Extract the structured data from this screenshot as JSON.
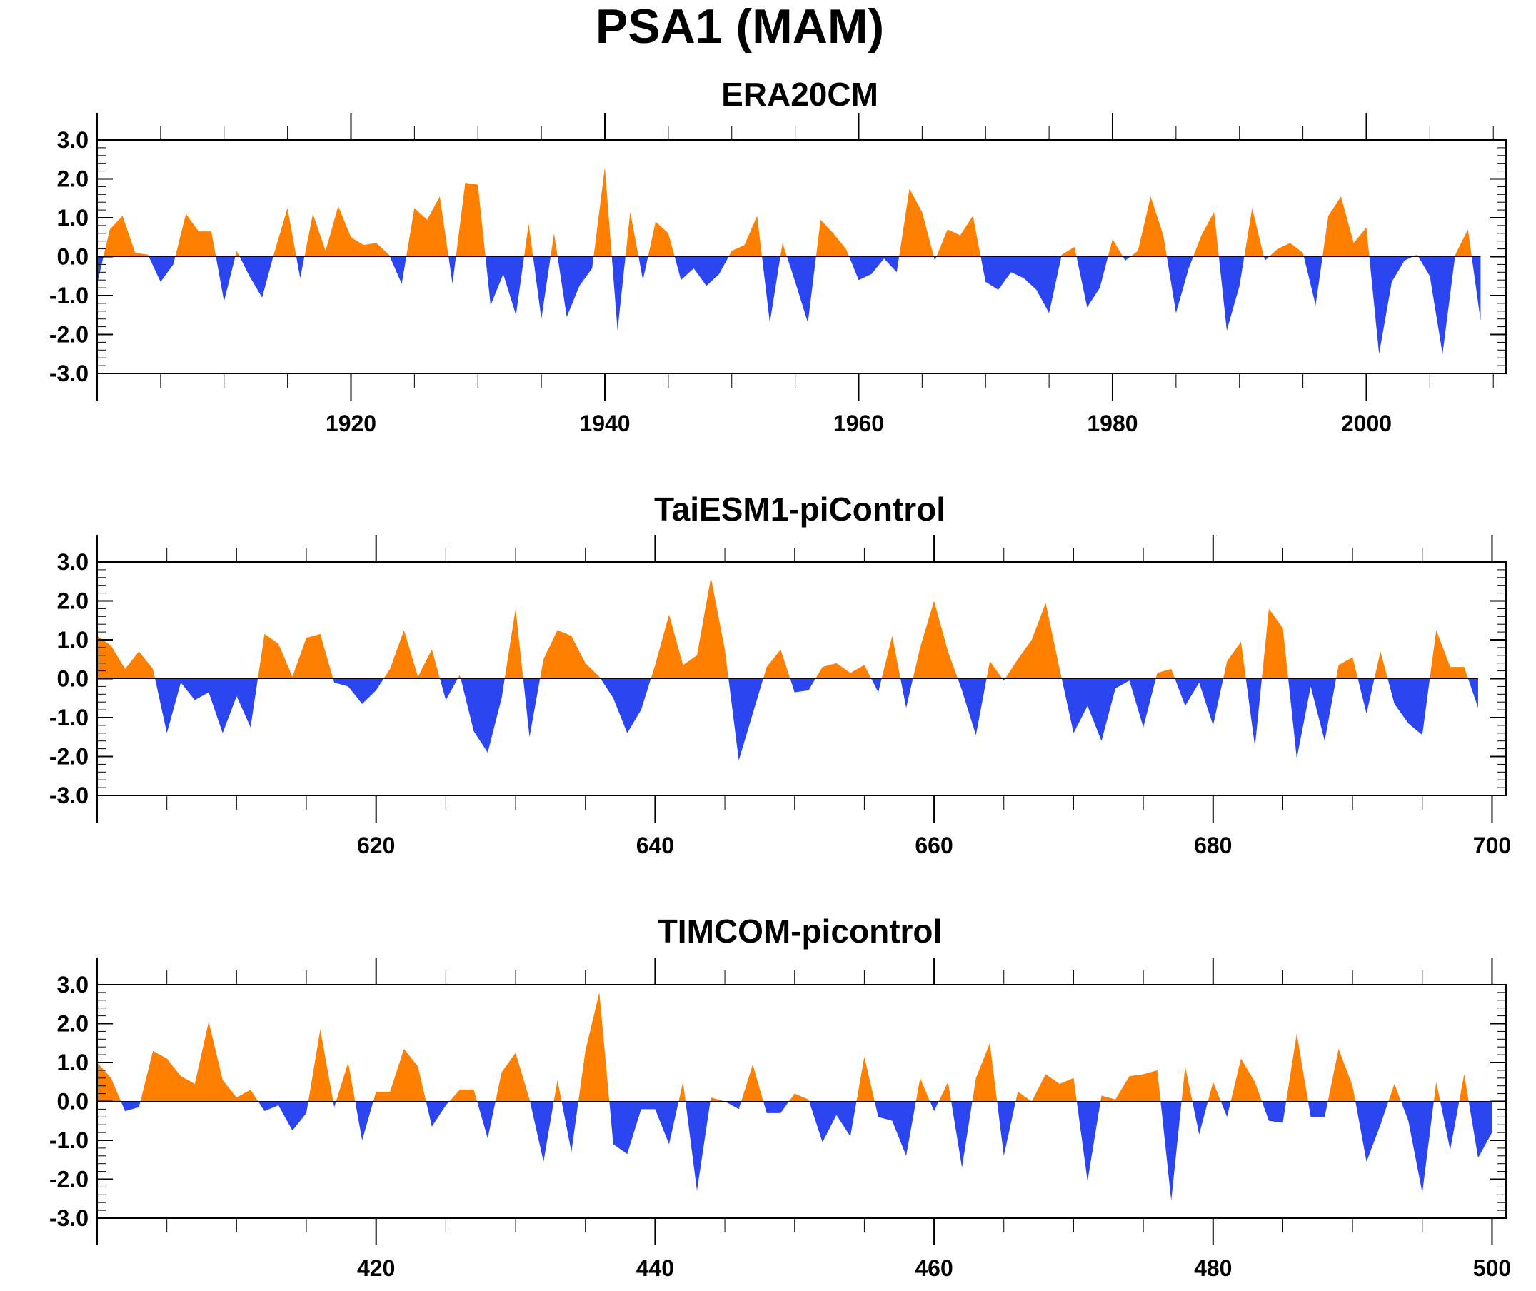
{
  "figure_title": "PSA1 (MAM)",
  "colors": {
    "positive": "#ff8000",
    "negative": "#2b46f0"
  },
  "chart_data": [
    {
      "type": "area",
      "title": "ERA20CM",
      "xlabel": "",
      "ylabel": "",
      "ylim": [
        -3,
        3
      ],
      "yticks": [
        -3.0,
        -2.0,
        -1.0,
        0.0,
        1.0,
        2.0,
        3.0
      ],
      "ytick_labels": [
        "-3.0",
        "-2.0",
        "-1.0",
        "0.0",
        "1.0",
        "2.0",
        "3.0"
      ],
      "xlim": [
        1900,
        2011
      ],
      "xticks": [
        1920,
        1940,
        1960,
        1980,
        2000
      ],
      "xtick_labels": [
        "1920",
        "1940",
        "1960",
        "1980",
        "2000"
      ],
      "grid": false,
      "x_start": 1900,
      "values": [
        -0.7,
        0.7,
        1.05,
        0.1,
        0.05,
        -0.65,
        -0.2,
        1.1,
        0.65,
        0.65,
        -1.15,
        0.15,
        -0.5,
        -1.05,
        0.15,
        1.25,
        -0.55,
        1.1,
        0.15,
        1.3,
        0.5,
        0.3,
        0.35,
        0.05,
        -0.7,
        1.25,
        0.95,
        1.55,
        -0.7,
        1.9,
        1.85,
        -1.25,
        -0.45,
        -1.5,
        0.85,
        -1.6,
        0.6,
        -1.55,
        -0.75,
        -0.3,
        2.3,
        -1.9,
        1.15,
        -0.6,
        0.9,
        0.6,
        -0.6,
        -0.3,
        -0.75,
        -0.45,
        0.15,
        0.3,
        1.05,
        -1.7,
        0.35,
        -0.65,
        -1.7,
        0.95,
        0.6,
        0.2,
        -0.6,
        -0.45,
        -0.05,
        -0.4,
        1.75,
        1.15,
        -0.1,
        0.7,
        0.55,
        1.05,
        -0.65,
        -0.85,
        -0.4,
        -0.55,
        -0.85,
        -1.45,
        0.05,
        0.25,
        -1.3,
        -0.8,
        0.45,
        -0.1,
        0.15,
        1.55,
        0.55,
        -1.45,
        -0.3,
        0.55,
        1.15,
        -1.9,
        -0.75,
        1.25,
        -0.1,
        0.2,
        0.35,
        0.1,
        -1.25,
        1.05,
        1.55,
        0.35,
        0.75,
        -2.5,
        -0.65,
        -0.1,
        0.05,
        -0.5,
        -2.5,
        0.05,
        0.7,
        -1.65
      ]
    },
    {
      "type": "area",
      "title": "TaiESM1-piControl",
      "xlabel": "",
      "ylabel": "",
      "ylim": [
        -3,
        3
      ],
      "yticks": [
        -3.0,
        -2.0,
        -1.0,
        0.0,
        1.0,
        2.0,
        3.0
      ],
      "ytick_labels": [
        "-3.0",
        "-2.0",
        "-1.0",
        "0.0",
        "1.0",
        "2.0",
        "3.0"
      ],
      "xlim": [
        600,
        701
      ],
      "xticks": [
        620,
        640,
        660,
        680,
        700
      ],
      "xtick_labels": [
        "620",
        "640",
        "660",
        "680",
        "700"
      ],
      "grid": false,
      "x_start": 600,
      "values": [
        1.1,
        0.85,
        0.25,
        0.7,
        0.25,
        -1.4,
        -0.1,
        -0.55,
        -0.35,
        -1.4,
        -0.45,
        -1.25,
        1.15,
        0.9,
        0.05,
        1.05,
        1.15,
        -0.1,
        -0.2,
        -0.65,
        -0.3,
        0.25,
        1.25,
        0.05,
        0.75,
        -0.55,
        0.1,
        -1.35,
        -1.9,
        -0.5,
        1.8,
        -1.5,
        0.5,
        1.25,
        1.1,
        0.4,
        0.05,
        -0.5,
        -1.4,
        -0.8,
        0.35,
        1.65,
        0.35,
        0.6,
        2.6,
        0.75,
        -2.1,
        -0.9,
        0.3,
        0.75,
        -0.35,
        -0.3,
        0.3,
        0.4,
        0.15,
        0.35,
        -0.35,
        1.1,
        -0.75,
        0.8,
        2.0,
        0.7,
        -0.3,
        -1.45,
        0.45,
        -0.05,
        0.5,
        1.0,
        1.95,
        0.25,
        -1.4,
        -0.7,
        -1.6,
        -0.25,
        -0.05,
        -1.25,
        0.15,
        0.25,
        -0.7,
        -0.1,
        -1.2,
        0.45,
        0.95,
        -1.75,
        1.8,
        1.3,
        -2.05,
        -0.2,
        -1.6,
        0.35,
        0.55,
        -0.9,
        0.7,
        -0.65,
        -1.15,
        -1.45,
        1.25,
        0.3,
        0.3,
        -0.75
      ]
    },
    {
      "type": "area",
      "title": "TIMCOM-picontrol",
      "xlabel": "",
      "ylabel": "",
      "ylim": [
        -3,
        3
      ],
      "yticks": [
        -3.0,
        -2.0,
        -1.0,
        0.0,
        1.0,
        2.0,
        3.0
      ],
      "ytick_labels": [
        "-3.0",
        "-2.0",
        "-1.0",
        "0.0",
        "1.0",
        "2.0",
        "3.0"
      ],
      "xlim": [
        400,
        501
      ],
      "xticks": [
        420,
        440,
        460,
        480,
        500
      ],
      "xtick_labels": [
        "420",
        "440",
        "460",
        "480",
        "500"
      ],
      "grid": false,
      "x_start": 400,
      "values": [
        1.0,
        0.6,
        -0.25,
        -0.15,
        1.3,
        1.1,
        0.65,
        0.45,
        2.05,
        0.55,
        0.1,
        0.3,
        -0.25,
        -0.1,
        -0.75,
        -0.3,
        1.85,
        -0.15,
        1.0,
        -1.0,
        0.25,
        0.25,
        1.35,
        0.9,
        -0.65,
        -0.1,
        0.3,
        0.3,
        -0.95,
        0.75,
        1.25,
        0.05,
        -1.55,
        0.55,
        -1.3,
        1.3,
        2.8,
        -1.1,
        -1.35,
        -0.2,
        -0.2,
        -1.1,
        0.5,
        -2.3,
        0.1,
        0.0,
        -0.2,
        0.95,
        -0.3,
        -0.3,
        0.2,
        0.05,
        -1.05,
        -0.35,
        -0.9,
        1.15,
        -0.4,
        -0.5,
        -1.4,
        0.6,
        -0.25,
        0.5,
        -1.7,
        0.6,
        1.5,
        -1.4,
        0.25,
        0.0,
        0.7,
        0.45,
        0.6,
        -2.05,
        0.15,
        0.05,
        0.65,
        0.7,
        0.8,
        -2.55,
        0.9,
        -0.85,
        0.5,
        -0.4,
        1.1,
        0.5,
        -0.5,
        -0.55,
        1.75,
        -0.4,
        -0.4,
        1.35,
        0.4,
        -1.55,
        -0.6,
        0.45,
        -0.5,
        -2.35,
        0.5,
        -1.25,
        0.7,
        -1.45,
        -0.8
      ]
    }
  ]
}
